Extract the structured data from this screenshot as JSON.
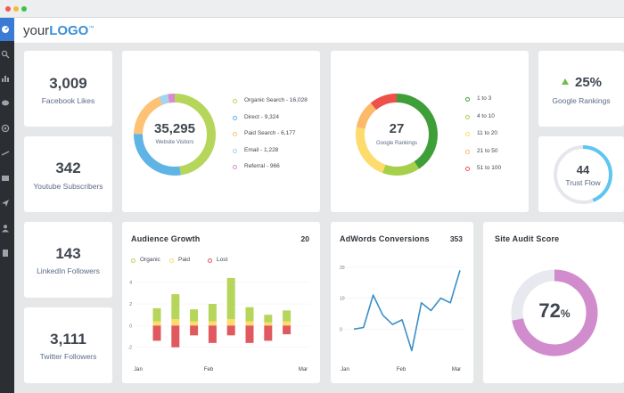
{
  "logo": {
    "prefix": "your",
    "brand": "LOGO",
    "tm": "™"
  },
  "stats": {
    "facebook": {
      "value": "3,009",
      "label": "Facebook Likes"
    },
    "youtube": {
      "value": "342",
      "label": "Youtube Subscribers"
    },
    "linkedin": {
      "value": "143",
      "label": "LinkedIn Followers"
    },
    "twitter": {
      "value": "3,111",
      "label": "Twitter Followers"
    }
  },
  "visitors": {
    "total": "35,295",
    "label": "Website Visitors",
    "items": [
      {
        "label": "Organic Search - 16,028",
        "value": 16028,
        "color": "#b5d65a"
      },
      {
        "label": "Direct - 9,324",
        "value": 9324,
        "color": "#5fb3e5"
      },
      {
        "label": "Paid Search - 6,177",
        "value": 6177,
        "color": "#fdc274"
      },
      {
        "label": "Email - 1,228",
        "value": 1228,
        "color": "#a8d2ee"
      },
      {
        "label": "Referral - 966",
        "value": 966,
        "color": "#d98bd0"
      }
    ]
  },
  "rankings": {
    "total": "27",
    "label": "Google Rankings",
    "items": [
      {
        "label": "1 to 3",
        "value": 11,
        "color": "#3e9e37"
      },
      {
        "label": "4 to 10",
        "value": 4,
        "color": "#a6cf4a"
      },
      {
        "label": "11 to 20",
        "value": 6,
        "color": "#fddb6d"
      },
      {
        "label": "21 to 50",
        "value": 3,
        "color": "#fcb96a"
      },
      {
        "label": "51 to 100",
        "value": 3,
        "color": "#ee5149"
      }
    ]
  },
  "google_rank_change": {
    "value": "25%",
    "label": "Google Rankings",
    "arrow_color": "#6fbf4a"
  },
  "trust_flow": {
    "value": "44",
    "label": "Trust Flow",
    "fraction": 0.44,
    "color": "#5fc6f0",
    "track": "#e5e7ec"
  },
  "audience": {
    "title": "Audience Growth",
    "value": "20",
    "legend": [
      {
        "label": "Organic",
        "color": "#b5d65a"
      },
      {
        "label": "Paid",
        "color": "#fddb6d"
      },
      {
        "label": "Lost",
        "color": "#e0595f"
      }
    ],
    "x_labels": [
      "Jan",
      "Feb",
      "Mar"
    ],
    "y_ticks": [
      "4",
      "2",
      "0",
      "-2"
    ],
    "chart_data": {
      "type": "bar",
      "series": [
        {
          "name": "Organic",
          "values": [
            1.2,
            2.3,
            1.1,
            1.6,
            3.8,
            1.3,
            0.7,
            1.0
          ]
        },
        {
          "name": "Paid",
          "values": [
            0.4,
            0.6,
            0.4,
            0.4,
            0.6,
            0.4,
            0.3,
            0.4
          ]
        },
        {
          "name": "Lost",
          "values": [
            -1.4,
            -2.0,
            -0.9,
            -1.6,
            -0.9,
            -1.6,
            -1.4,
            -0.8
          ]
        }
      ],
      "ylim": [
        -2.6,
        4.8
      ]
    }
  },
  "adwords": {
    "title": "AdWords Conversions",
    "value": "353",
    "x_labels": [
      "Jan",
      "Feb",
      "Mar"
    ],
    "y_ticks": [
      "20",
      "10",
      "0"
    ],
    "chart_data": {
      "type": "line",
      "values": [
        0,
        0.5,
        11,
        4.5,
        1.5,
        3,
        -7,
        8.5,
        6,
        10,
        8.5,
        19
      ],
      "ylim": [
        -8,
        22
      ],
      "color": "#3a8fc9"
    }
  },
  "site_audit": {
    "title": "Site Audit Score",
    "value": "72",
    "unit": "%",
    "fraction": 0.72,
    "color": "#d18ccd",
    "track": "#e8e9ef"
  }
}
